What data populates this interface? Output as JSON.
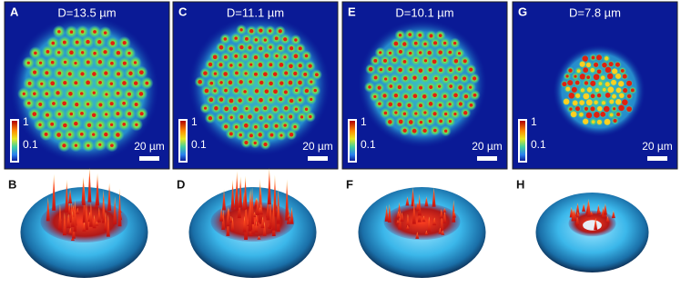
{
  "panels": [
    {
      "label": "A",
      "title": "D=13.5 µm",
      "colorbar": {
        "max": "1",
        "min": "0.1"
      },
      "scale_bar": "20 µm",
      "surface_label": "B"
    },
    {
      "label": "C",
      "title": "D=11.1 µm",
      "colorbar": {
        "max": "1",
        "min": "0.1"
      },
      "scale_bar": "20 µm",
      "surface_label": "D"
    },
    {
      "label": "E",
      "title": "D=10.1 µm",
      "colorbar": {
        "max": "1",
        "min": "0.1"
      },
      "scale_bar": "20 µm",
      "surface_label": "F"
    },
    {
      "label": "G",
      "title": "D=7.8 µm",
      "colorbar": {
        "max": "1",
        "min": "0.1"
      },
      "scale_bar": "20 µm",
      "surface_label": "H"
    }
  ]
}
